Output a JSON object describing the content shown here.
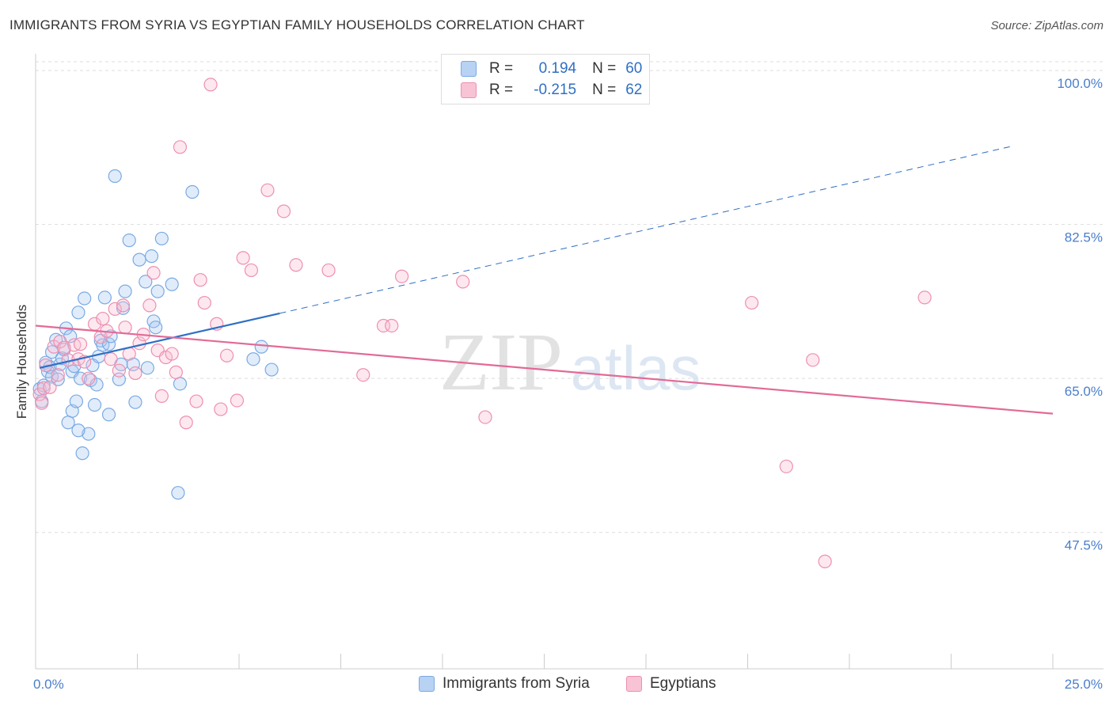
{
  "header": {
    "title": "IMMIGRANTS FROM SYRIA VS EGYPTIAN FAMILY HOUSEHOLDS CORRELATION CHART",
    "source": "Source: ZipAtlas.com"
  },
  "colors": {
    "syria": "#7aaae4",
    "syria_fill": "rgba(168,200,240,0.35)",
    "syria_line": "#2f6fc4",
    "egypt": "#ee8fb0",
    "egypt_fill": "rgba(248,190,210,0.35)",
    "egypt_line": "#e26a96",
    "tick_label": "#4a7ecb",
    "grid": "#dddddd"
  },
  "legend": {
    "r_label": "R =",
    "n_label": "N =",
    "syria_r": "0.194",
    "syria_n": "60",
    "egypt_r": "-0.215",
    "egypt_n": "62"
  },
  "watermark": {
    "part1": "ZIP",
    "part2": "atlas"
  },
  "chart_data": {
    "type": "scatter",
    "title": "IMMIGRANTS FROM SYRIA VS EGYPTIAN FAMILY HOUSEHOLDS CORRELATION CHART",
    "xlabel": "",
    "ylabel": "Family Households",
    "xlim": [
      0,
      25
    ],
    "ylim": [
      32,
      101
    ],
    "x_tick_labels": [
      "0.0%",
      "25.0%"
    ],
    "y_ticks": [
      47.5,
      65.0,
      82.5,
      100.0
    ],
    "y_tick_labels": [
      "47.5%",
      "65.0%",
      "82.5%",
      "100.0%"
    ],
    "grid": true,
    "series": [
      {
        "name": "Immigrants from Syria",
        "trend": {
          "x0": 0.1,
          "y0": 66.2,
          "x1": 6.0,
          "y1": 72.4,
          "x_dash_end": 24.0,
          "y_dash_end": 91.4
        },
        "points": [
          [
            0.1,
            63.8
          ],
          [
            0.15,
            62.4
          ],
          [
            0.2,
            64.2
          ],
          [
            0.25,
            66.8
          ],
          [
            0.3,
            65.8
          ],
          [
            0.35,
            66.3
          ],
          [
            0.4,
            68.0
          ],
          [
            0.4,
            65.2
          ],
          [
            0.5,
            69.4
          ],
          [
            0.55,
            64.9
          ],
          [
            0.6,
            66.6
          ],
          [
            0.65,
            67.3
          ],
          [
            0.7,
            68.3
          ],
          [
            0.75,
            70.7
          ],
          [
            0.8,
            60.0
          ],
          [
            0.85,
            69.8
          ],
          [
            0.9,
            65.8
          ],
          [
            0.9,
            61.3
          ],
          [
            0.95,
            66.4
          ],
          [
            1.0,
            62.4
          ],
          [
            1.05,
            72.5
          ],
          [
            1.1,
            65.0
          ],
          [
            1.15,
            56.5
          ],
          [
            1.2,
            74.1
          ],
          [
            1.3,
            58.7
          ],
          [
            1.35,
            64.8
          ],
          [
            1.4,
            66.5
          ],
          [
            1.45,
            62.0
          ],
          [
            1.5,
            64.3
          ],
          [
            1.55,
            67.5
          ],
          [
            1.6,
            69.3
          ],
          [
            1.65,
            68.8
          ],
          [
            1.7,
            74.2
          ],
          [
            1.8,
            68.9
          ],
          [
            1.85,
            69.8
          ],
          [
            1.95,
            88.0
          ],
          [
            2.05,
            64.9
          ],
          [
            2.1,
            66.6
          ],
          [
            2.15,
            73.0
          ],
          [
            2.2,
            74.9
          ],
          [
            2.3,
            80.7
          ],
          [
            2.4,
            66.6
          ],
          [
            2.45,
            62.3
          ],
          [
            2.55,
            78.5
          ],
          [
            2.7,
            76.0
          ],
          [
            2.75,
            66.2
          ],
          [
            2.85,
            78.9
          ],
          [
            2.9,
            71.5
          ],
          [
            2.95,
            70.8
          ],
          [
            3.0,
            74.9
          ],
          [
            3.1,
            80.9
          ],
          [
            3.35,
            75.7
          ],
          [
            3.5,
            52.0
          ],
          [
            3.55,
            64.4
          ],
          [
            3.85,
            86.2
          ],
          [
            5.35,
            67.2
          ],
          [
            5.55,
            68.6
          ],
          [
            5.8,
            66.0
          ],
          [
            1.05,
            59.1
          ],
          [
            1.8,
            60.9
          ]
        ]
      },
      {
        "name": "Egyptians",
        "trend": {
          "x0": 0.0,
          "y0": 71.0,
          "x1": 25.0,
          "y1": 61.0
        },
        "points": [
          [
            0.1,
            63.2
          ],
          [
            0.15,
            62.2
          ],
          [
            0.2,
            63.9
          ],
          [
            0.25,
            66.5
          ],
          [
            0.35,
            64.0
          ],
          [
            0.45,
            68.6
          ],
          [
            0.55,
            65.4
          ],
          [
            0.6,
            69.2
          ],
          [
            0.7,
            68.5
          ],
          [
            0.8,
            67.1
          ],
          [
            0.95,
            68.8
          ],
          [
            1.05,
            67.2
          ],
          [
            1.1,
            68.9
          ],
          [
            1.2,
            66.9
          ],
          [
            1.3,
            65.0
          ],
          [
            1.45,
            71.2
          ],
          [
            1.6,
            69.7
          ],
          [
            1.65,
            71.8
          ],
          [
            1.75,
            70.4
          ],
          [
            1.85,
            67.2
          ],
          [
            1.95,
            72.9
          ],
          [
            2.05,
            65.9
          ],
          [
            2.15,
            73.3
          ],
          [
            2.2,
            70.8
          ],
          [
            2.3,
            67.8
          ],
          [
            2.45,
            65.6
          ],
          [
            2.55,
            69.0
          ],
          [
            2.65,
            70.0
          ],
          [
            2.8,
            73.3
          ],
          [
            2.9,
            77.0
          ],
          [
            3.0,
            68.2
          ],
          [
            3.1,
            63.0
          ],
          [
            3.2,
            67.4
          ],
          [
            3.35,
            67.8
          ],
          [
            3.45,
            65.7
          ],
          [
            3.55,
            91.3
          ],
          [
            3.7,
            60.0
          ],
          [
            3.95,
            62.4
          ],
          [
            4.05,
            76.2
          ],
          [
            4.15,
            73.6
          ],
          [
            4.3,
            98.4
          ],
          [
            4.45,
            71.2
          ],
          [
            4.55,
            61.5
          ],
          [
            4.7,
            67.6
          ],
          [
            4.95,
            62.5
          ],
          [
            5.1,
            78.7
          ],
          [
            5.3,
            77.3
          ],
          [
            5.7,
            86.4
          ],
          [
            6.1,
            84.0
          ],
          [
            6.4,
            77.9
          ],
          [
            7.2,
            77.3
          ],
          [
            8.05,
            65.4
          ],
          [
            8.55,
            71.0
          ],
          [
            8.75,
            71.0
          ],
          [
            9.0,
            76.6
          ],
          [
            10.5,
            76.0
          ],
          [
            11.05,
            60.6
          ],
          [
            17.6,
            73.6
          ],
          [
            18.45,
            55.0
          ],
          [
            19.1,
            67.1
          ],
          [
            19.4,
            44.2
          ],
          [
            21.85,
            74.2
          ]
        ]
      }
    ]
  },
  "bottom_legend": {
    "syria_label": "Immigrants from Syria",
    "egypt_label": "Egyptians"
  }
}
